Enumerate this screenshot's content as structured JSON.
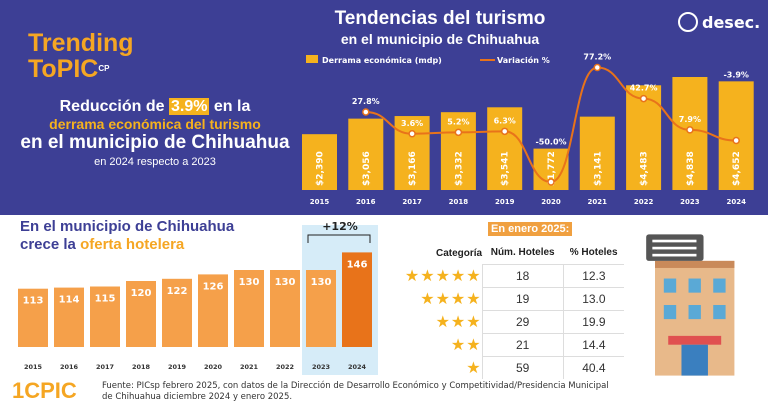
{
  "branding": {
    "logo_text": "Trending ToPIC",
    "logo_sub": "CP",
    "company": "desec.",
    "bottom_logo": "1CPIC"
  },
  "header": {
    "title": "Tendencias del turismo",
    "subtitle": "en el municipio de Chihuahua"
  },
  "lead": {
    "part1": "Reducción de ",
    "highlight": "3.9%",
    "part2": " en la",
    "line2": "derrama económica del turismo",
    "line3": "en el municipio de Chihuahua",
    "line4": "en 2024 respecto a 2023"
  },
  "section2": {
    "line1": "En el municipio de Chihuahua",
    "line2a": "crece la ",
    "line2b": "oferta hotelera"
  },
  "table": {
    "caption": "En enero 2025:",
    "headers": [
      "Categoría",
      "Núm. Hoteles",
      "% Hoteles"
    ],
    "rows": [
      {
        "stars": 5,
        "count": "18",
        "pct": "12.3"
      },
      {
        "stars": 4,
        "count": "19",
        "pct": "13.0"
      },
      {
        "stars": 3,
        "count": "29",
        "pct": "19.9"
      },
      {
        "stars": 2,
        "count": "21",
        "pct": "14.4"
      },
      {
        "stars": 1,
        "count": "59",
        "pct": "40.4"
      }
    ]
  },
  "source": "Fuente: PICsp febrero 2025, con datos de la Dirección de Desarrollo Económico y Competitividad/Presidencia Municipal de Chihuahua diciembre 2024 y enero 2025.",
  "colors": {
    "navy": "#3d3f95",
    "bar": "#f5b21e",
    "line": "#e8731a",
    "hotel_bar": "#f5a04a",
    "hotel_bar_hl": "#e8731a",
    "hl_bg": "#d6ecf8"
  },
  "chart_data": [
    {
      "type": "bar+line",
      "categories": [
        "2015",
        "2016",
        "2017",
        "2018",
        "2019",
        "2020",
        "2021",
        "2022",
        "2023",
        "2024"
      ],
      "series": [
        {
          "name": "Derrama económica (mdp)",
          "type": "bar",
          "values": [
            2390,
            3056,
            3166,
            3332,
            3541,
            1772,
            3141,
            4483,
            4838,
            4652
          ],
          "labels": [
            "$2,390",
            "$3,056",
            "$3,166",
            "$3,332",
            "$3,541",
            "$1,772",
            "$3,141",
            "$4,483",
            "$4,838",
            "$4,652"
          ]
        },
        {
          "name": "Variación %",
          "type": "line",
          "values": [
            null,
            27.8,
            3.6,
            5.2,
            6.3,
            -50.0,
            77.2,
            42.7,
            7.9,
            -3.9
          ],
          "labels": [
            "",
            "27.8%",
            "3.6%",
            "5.2%",
            "6.3%",
            "-50.0%",
            "77.2%",
            "42.7%",
            "7.9%",
            "-3.9%"
          ]
        }
      ],
      "legend": "top"
    },
    {
      "type": "bar",
      "categories": [
        "2015",
        "2016",
        "2017",
        "2018",
        "2019",
        "2020",
        "2021",
        "2022",
        "2023",
        "2024"
      ],
      "values": [
        113,
        114,
        115,
        120,
        122,
        126,
        130,
        130,
        130,
        146
      ],
      "annotation": "+12%",
      "highlight": [
        "2023",
        "2024"
      ]
    }
  ]
}
